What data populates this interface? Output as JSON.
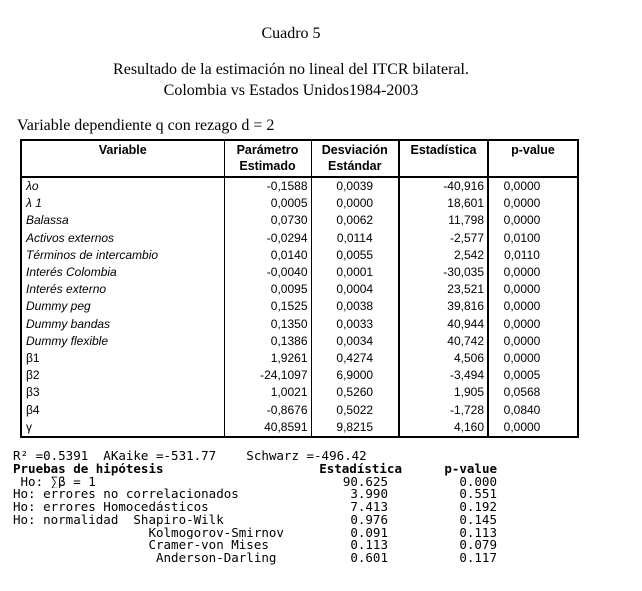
{
  "doc": {
    "caption": "Cuadro 5",
    "subtitle_line1": "Resultado de la estimación no lineal del ITCR bilateral.",
    "subtitle_line2": "Colombia vs Estados Unidos1984-2003",
    "dependent_note": "Variable dependiente q con rezago d = 2"
  },
  "table": {
    "headers": [
      {
        "line1": "Variable",
        "line2": ""
      },
      {
        "line1": "Parámetro",
        "line2": "Estimado"
      },
      {
        "line1": "Desviación",
        "line2": "Estándar"
      },
      {
        "line1": "Estadística",
        "line2": ""
      },
      {
        "line1": "p-value",
        "line2": ""
      }
    ],
    "rows": [
      {
        "variable": "λo",
        "italic": true,
        "param": "-0,1588",
        "std": "0,0039",
        "stat": "-40,916",
        "pvalue": "0,0000"
      },
      {
        "variable": "λ 1",
        "italic": true,
        "param": "0,0005",
        "std": "0,0000",
        "stat": "18,601",
        "pvalue": "0,0000"
      },
      {
        "variable": "Balassa",
        "italic": true,
        "param": "0,0730",
        "std": "0,0062",
        "stat": "11,798",
        "pvalue": "0,0000"
      },
      {
        "variable": "Activos externos",
        "italic": true,
        "param": "-0,0294",
        "std": "0,0114",
        "stat": "-2,577",
        "pvalue": "0,0100"
      },
      {
        "variable": "Términos de intercambio",
        "italic": true,
        "param": "0,0140",
        "std": "0,0055",
        "stat": "2,542",
        "pvalue": "0,0110"
      },
      {
        "variable": "Interés Colombia",
        "italic": true,
        "param": "-0,0040",
        "std": "0,0001",
        "stat": "-30,035",
        "pvalue": "0,0000"
      },
      {
        "variable": "Interés externo",
        "italic": true,
        "param": "0,0095",
        "std": "0,0004",
        "stat": "23,521",
        "pvalue": "0,0000"
      },
      {
        "variable": "Dummy peg",
        "italic": true,
        "param": "0,1525",
        "std": "0,0038",
        "stat": "39,816",
        "pvalue": "0,0000"
      },
      {
        "variable": "Dummy bandas",
        "italic": true,
        "param": "0,1350",
        "std": "0,0033",
        "stat": "40,944",
        "pvalue": "0,0000"
      },
      {
        "variable": "Dummy flexible",
        "italic": true,
        "param": "0,1386",
        "std": "0,0034",
        "stat": "40,742",
        "pvalue": "0,0000"
      },
      {
        "variable": "β1",
        "italic": false,
        "param": "1,9261",
        "std": "0,4274",
        "stat": "4,506",
        "pvalue": "0,0000"
      },
      {
        "variable": "β2",
        "italic": false,
        "param": "-24,1097",
        "std": "6,9000",
        "stat": "-3,494",
        "pvalue": "0,0005"
      },
      {
        "variable": "β3",
        "italic": false,
        "param": "1,0021",
        "std": "0,5260",
        "stat": "1,905",
        "pvalue": "0,0568"
      },
      {
        "variable": "β4",
        "italic": false,
        "param": "-0,8676",
        "std": "0,5022",
        "stat": "-1,728",
        "pvalue": "0,0840"
      },
      {
        "variable": "γ",
        "italic": false,
        "param": "40,8591",
        "std": "9,8215",
        "stat": "4,160",
        "pvalue": "0,0000"
      }
    ]
  },
  "fit_stats": {
    "line": "R² =0.5391  AKaike =-531.77    Schwarz =-496.42"
  },
  "tests": {
    "header": {
      "label": "Pruebas de hipótesis",
      "stat": "Estadística",
      "pvalue": "p-value"
    },
    "rows": [
      {
        "label": " Ho: ∑β = 1",
        "stat": "90.625",
        "pvalue": "0.000"
      },
      {
        "label": "Ho: errores no correlacionados",
        "stat": "3.990",
        "pvalue": "0.551"
      },
      {
        "label": "Ho: errores Homocedásticos",
        "stat": "7.413",
        "pvalue": "0.192"
      },
      {
        "label": "Ho: normalidad  Shapiro-Wilk",
        "stat": "0.976",
        "pvalue": "0.145"
      },
      {
        "label": "                  Kolmogorov-Smirnov",
        "stat": "0.091",
        "pvalue": "0.113"
      },
      {
        "label": "                  Cramer-von Mises",
        "stat": "0.113",
        "pvalue": "0.079"
      },
      {
        "label": "                   Anderson-Darling",
        "stat": "0.601",
        "pvalue": "0.117"
      }
    ]
  }
}
